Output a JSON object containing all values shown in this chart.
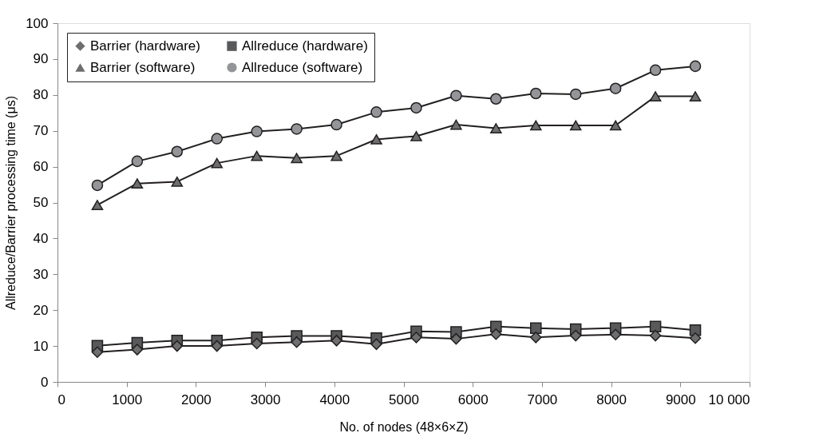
{
  "chart_data": {
    "type": "line",
    "xlabel": "No. of nodes (48×6×Z)",
    "ylabel": "Allreduce/Barrier processing time (μs)",
    "x": [
      576,
      1152,
      1728,
      2304,
      2880,
      3456,
      4032,
      4608,
      5184,
      5760,
      6336,
      6912,
      7488,
      8064,
      8640,
      9216
    ],
    "series": [
      {
        "name": "Barrier (hardware)",
        "color": "#6d6e70",
        "marker": "diamond",
        "values": [
          8.3,
          9.0,
          10.0,
          10.0,
          10.7,
          11.1,
          11.5,
          10.5,
          12.4,
          12.0,
          13.3,
          12.4,
          12.9,
          13.2,
          12.9,
          12.2
        ]
      },
      {
        "name": "Allreduce (hardware)",
        "color": "#58595b",
        "marker": "square",
        "values": [
          10.1,
          10.9,
          11.5,
          11.5,
          12.4,
          12.8,
          12.8,
          12.2,
          14.1,
          13.9,
          15.4,
          15.0,
          14.7,
          15.0,
          15.4,
          14.4
        ]
      },
      {
        "name": "Barrier (software)",
        "color": "#6d6e70",
        "marker": "triangle",
        "values": [
          49.3,
          55.3,
          55.8,
          61.0,
          63.0,
          62.4,
          63.0,
          67.6,
          68.5,
          71.7,
          70.7,
          71.5,
          71.5,
          71.5,
          79.6,
          79.6
        ]
      },
      {
        "name": "Allreduce (software)",
        "color": "#939598",
        "marker": "circle",
        "values": [
          54.8,
          61.5,
          64.2,
          67.8,
          69.8,
          70.5,
          71.7,
          75.2,
          76.4,
          79.8,
          78.9,
          80.4,
          80.2,
          81.8,
          86.9,
          88.0
        ]
      }
    ],
    "xlim": [
      0,
      10000
    ],
    "xticks": [
      0,
      1000,
      2000,
      3000,
      4000,
      5000,
      6000,
      7000,
      8000,
      9000,
      {
        "value": 10000,
        "label": "10 000"
      }
    ],
    "ylim": [
      0,
      100
    ],
    "yticks": [
      0,
      10,
      20,
      30,
      40,
      50,
      60,
      70,
      80,
      90,
      100
    ],
    "grid": false,
    "legend": "top left",
    "line_style": "solid"
  }
}
